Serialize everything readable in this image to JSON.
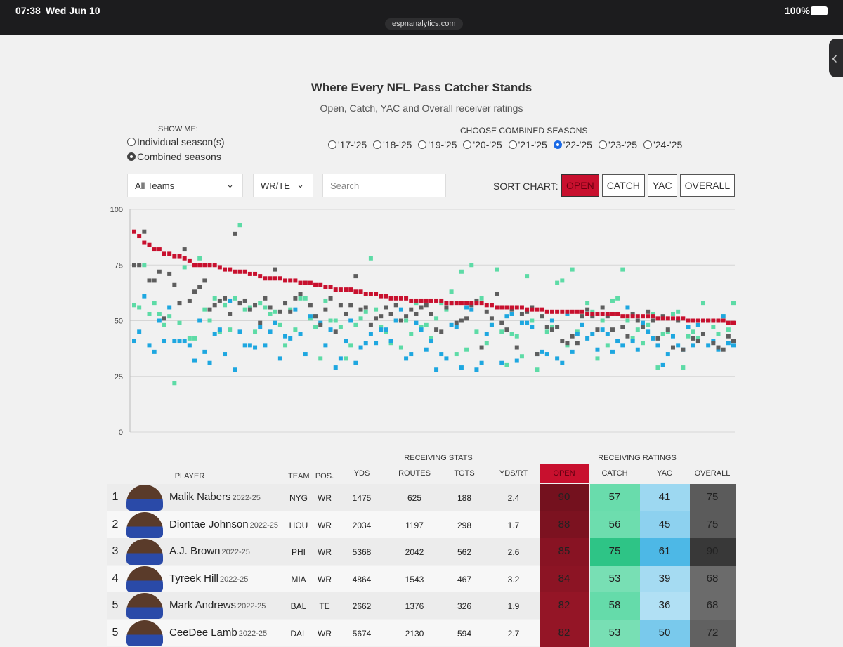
{
  "status_bar": {
    "time": "07:38",
    "date": "Wed Jun 10",
    "url": "espnanalytics.com",
    "battery": "100%"
  },
  "header": {
    "title": "Where Every NFL Pass Catcher Stands",
    "subtitle": "Open, Catch, YAC and Overall receiver ratings"
  },
  "controls": {
    "show_me_label": "SHOW ME:",
    "show_me_options": [
      "Individual season(s)",
      "Combined seasons"
    ],
    "show_me_selected": 1,
    "seasons_label": "CHOOSE COMBINED SEASONS",
    "seasons": [
      "'17-'25",
      "'18-'25",
      "'19-'25",
      "'20-'25",
      "'21-'25",
      "'22-'25",
      "'23-'25",
      "'24-'25"
    ],
    "seasons_selected": 5,
    "team_filter": "All Teams",
    "position_filter": "WR/TE",
    "search_placeholder": "Search",
    "sort_label": "SORT CHART:",
    "sort_buttons": [
      "OPEN",
      "CATCH",
      "YAC",
      "OVERALL"
    ],
    "sort_selected": 0
  },
  "chart_data": {
    "type": "scatter",
    "ylim": [
      0,
      100
    ],
    "yticks": [
      0,
      25,
      50,
      75,
      100
    ],
    "grid": true,
    "series": [
      {
        "color": "#5ddba6",
        "values": [
          57,
          56,
          75,
          53,
          58,
          53,
          48,
          52,
          22,
          49,
          74,
          42,
          42,
          78,
          55,
          50,
          60,
          45,
          57,
          46,
          60,
          93,
          55,
          56,
          45,
          58,
          56,
          53,
          54,
          48,
          39,
          55,
          46,
          60,
          60,
          51,
          47,
          33,
          59,
          50,
          50,
          47,
          33,
          39,
          48,
          51,
          54,
          78,
          55,
          47,
          45,
          40,
          50,
          38,
          50,
          44,
          58,
          47,
          48,
          42,
          51,
          58,
          55,
          63,
          35,
          72,
          37,
          75,
          45,
          60,
          40,
          48,
          73,
          45,
          30,
          44,
          43,
          34,
          70,
          50,
          28,
          52,
          45,
          47,
          67,
          68,
          39,
          73,
          45,
          52,
          58,
          54,
          33,
          50,
          39,
          59,
          60,
          73,
          50,
          42,
          46,
          40,
          48,
          53,
          29,
          44,
          45,
          53,
          54,
          29,
          43,
          45,
          42,
          58,
          50,
          47,
          44,
          52,
          46,
          58
        ]
      },
      {
        "color": "#1ea7e0",
        "values": [
          41,
          45,
          61,
          39,
          36,
          50,
          41,
          56,
          41,
          41,
          41,
          39,
          32,
          50,
          36,
          31,
          44,
          46,
          35,
          59,
          28,
          45,
          39,
          39,
          38,
          47,
          39,
          45,
          49,
          33,
          43,
          42,
          55,
          44,
          35,
          52,
          52,
          49,
          39,
          46,
          29,
          33,
          41,
          50,
          31,
          38,
          40,
          44,
          40,
          46,
          46,
          41,
          50,
          55,
          33,
          35,
          49,
          46,
          37,
          41,
          28,
          35,
          33,
          48,
          47,
          29,
          56,
          55,
          28,
          31,
          44,
          48,
          56,
          31,
          52,
          53,
          32,
          49,
          49,
          47,
          35,
          36,
          35,
          50,
          33,
          31,
          53,
          36,
          44,
          48,
          42,
          44,
          37,
          46,
          44,
          36,
          41,
          39,
          56,
          41,
          37,
          49,
          45,
          42,
          39,
          30,
          35,
          43,
          39,
          37,
          47,
          39,
          48,
          44,
          39,
          41,
          37,
          52,
          40,
          39
        ]
      },
      {
        "color": "#5e5e5e",
        "values": [
          75,
          75,
          90,
          68,
          68,
          72,
          51,
          71,
          66,
          58,
          82,
          59,
          63,
          65,
          68,
          55,
          57,
          59,
          60,
          53,
          89,
          58,
          59,
          55,
          57,
          49,
          60,
          56,
          73,
          54,
          58,
          54,
          60,
          62,
          67,
          57,
          52,
          48,
          55,
          60,
          45,
          57,
          53,
          57,
          70,
          55,
          56,
          48,
          51,
          52,
          56,
          53,
          57,
          50,
          52,
          55,
          53,
          56,
          57,
          53,
          46,
          45,
          56,
          58,
          49,
          50,
          51,
          57,
          59,
          38,
          54,
          51,
          62,
          49,
          46,
          55,
          38,
          53,
          54,
          56,
          35,
          52,
          47,
          46,
          47,
          41,
          40,
          43,
          40,
          52,
          55,
          52,
          46,
          56,
          52,
          46,
          53,
          47,
          43,
          53,
          50,
          47,
          54,
          50,
          42,
          52,
          46,
          38,
          50,
          37,
          50,
          42,
          41,
          44,
          50,
          40,
          38,
          37,
          43,
          41
        ]
      },
      {
        "color": "#c8102e",
        "values": [
          90,
          88,
          85,
          84,
          82,
          82,
          80,
          80,
          79,
          79,
          78,
          77,
          75,
          75,
          75,
          75,
          75,
          74,
          73,
          73,
          72,
          72,
          72,
          71,
          71,
          70,
          69,
          69,
          69,
          69,
          68,
          68,
          68,
          67,
          67,
          67,
          66,
          66,
          65,
          65,
          64,
          64,
          64,
          64,
          63,
          63,
          62,
          62,
          62,
          61,
          61,
          60,
          60,
          60,
          60,
          59,
          59,
          59,
          59,
          59,
          59,
          59,
          58,
          58,
          58,
          58,
          58,
          58,
          58,
          58,
          57,
          57,
          56,
          56,
          56,
          56,
          56,
          56,
          55,
          55,
          55,
          55,
          54,
          54,
          54,
          54,
          54,
          54,
          54,
          54,
          53,
          53,
          53,
          53,
          53,
          53,
          53,
          52,
          52,
          52,
          52,
          52,
          52,
          52,
          51,
          51,
          51,
          51,
          51,
          51,
          50,
          50,
          50,
          50,
          50,
          50,
          50,
          50,
          49,
          49
        ]
      }
    ]
  },
  "table": {
    "group_headers": [
      "RECEIVING STATS",
      "RECEIVING RATINGS"
    ],
    "columns": [
      "PLAYER",
      "TEAM",
      "POS.",
      "YDS",
      "ROUTES",
      "TGTS",
      "YDS/RT",
      "OPEN",
      "CATCH",
      "YAC",
      "OVERALL"
    ],
    "rows": [
      [
        1,
        "Malik Nabers",
        "2022-25",
        "NYG",
        "WR",
        1475,
        625,
        188,
        2.4,
        90,
        57,
        41,
        75
      ],
      [
        2,
        "Diontae Johnson",
        "2022-25",
        "HOU",
        "WR",
        2034,
        1197,
        298,
        1.7,
        88,
        56,
        45,
        75
      ],
      [
        3,
        "A.J. Brown",
        "2022-25",
        "PHI",
        "WR",
        5368,
        2042,
        562,
        2.6,
        85,
        75,
        61,
        90
      ],
      [
        4,
        "Tyreek Hill",
        "2022-25",
        "MIA",
        "WR",
        4864,
        1543,
        467,
        3.2,
        84,
        53,
        39,
        68
      ],
      [
        5,
        "Mark Andrews",
        "2022-25",
        "BAL",
        "TE",
        2662,
        1376,
        326,
        1.9,
        82,
        58,
        36,
        68
      ],
      [
        5,
        "CeeDee Lamb",
        "2022-25",
        "DAL",
        "WR",
        5674,
        2130,
        594,
        2.7,
        82,
        53,
        50,
        72
      ]
    ]
  }
}
